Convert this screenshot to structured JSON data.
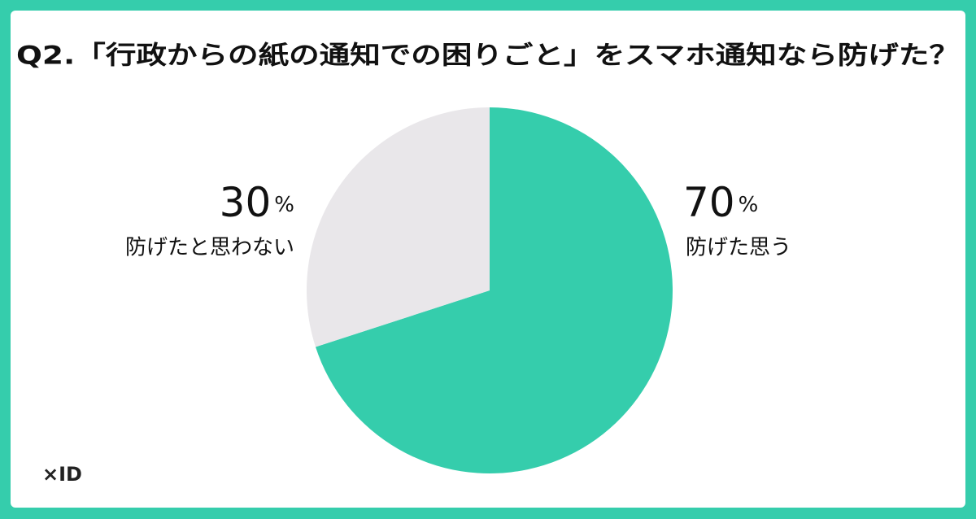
{
  "chart_data": {
    "type": "pie",
    "title": "Q2.「行政からの紙の通知での困りごと」をスマホ通知なら防げた？",
    "categories": [
      "防げた思う",
      "防げたと思わない"
    ],
    "values": [
      70,
      30
    ],
    "value_labels": [
      "70%",
      "30%"
    ],
    "colors": [
      "#35cdac",
      "#e9e7ea"
    ]
  },
  "logo": "×ID"
}
